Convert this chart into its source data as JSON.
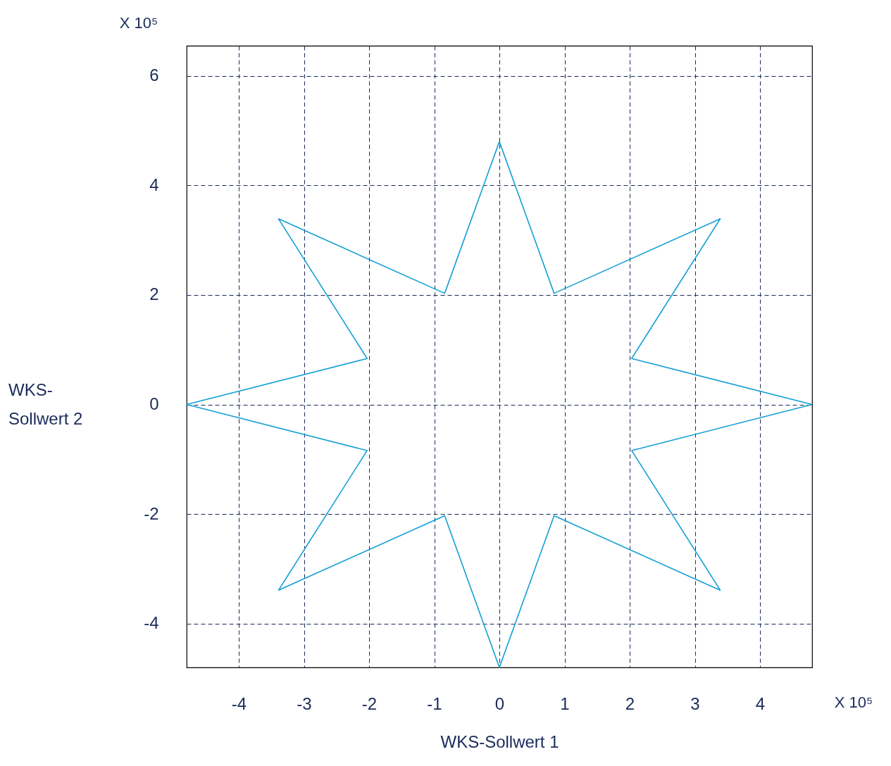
{
  "chart_data": {
    "type": "line",
    "xlabel": "WKS-Sollwert 1",
    "ylabel": "WKS-Sollwert 2",
    "annotations": [
      "X 10⁵",
      "X 10⁵"
    ],
    "series": [
      {
        "color": "#149fd6",
        "x": [
          -4.8,
          -2.03,
          -3.39,
          -0.84,
          0,
          0.84,
          3.39,
          2.03,
          4.8
        ],
        "values": [
          0,
          0.84,
          3.39,
          2.03,
          4.8,
          2.03,
          3.39,
          0.84,
          0
        ]
      },
      {
        "color": "#149fd6",
        "x": [
          4.8,
          2.03,
          3.39,
          0.84,
          0,
          -0.84,
          -3.39,
          -2.03,
          -4.8
        ],
        "values": [
          0,
          -0.84,
          -3.39,
          -2.03,
          -4.8,
          -2.03,
          -3.39,
          -0.84,
          0
        ]
      }
    ],
    "xlim": [
      -4.8,
      4.8
    ],
    "ylim": [
      -4.8,
      6.55
    ],
    "xticks": [
      -4,
      -3,
      -2,
      -1,
      0,
      1,
      2,
      3,
      4
    ],
    "yticks": [
      -4,
      -2,
      0,
      2,
      4,
      6
    ],
    "grid": true,
    "marker": "none",
    "line_style": "solid"
  }
}
